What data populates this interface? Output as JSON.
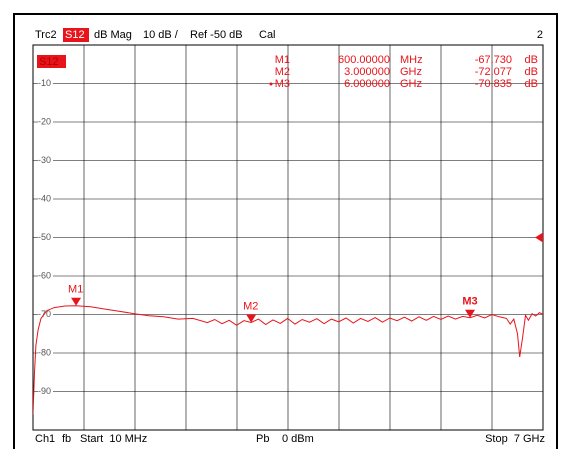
{
  "chart_data": {
    "type": "line",
    "header": {
      "trace": "Trc2",
      "param": "S12",
      "format": "dB Mag",
      "scale": "10 dB /",
      "ref": "Ref -50 dB",
      "cal": "Cal",
      "window": "2"
    },
    "ref_level": -50,
    "xlim": [
      0.01,
      7
    ],
    "ylim": [
      -100,
      0
    ],
    "yticks": [
      -10,
      -20,
      -30,
      -40,
      -50,
      -60,
      -70,
      -80,
      -90
    ],
    "grid": true,
    "series": [
      {
        "name": "S12",
        "color": "#e8141b",
        "x": [
          0.01,
          0.03,
          0.05,
          0.08,
          0.12,
          0.2,
          0.3,
          0.45,
          0.6,
          0.8,
          1.0,
          1.2,
          1.4,
          1.6,
          1.8,
          2.0,
          2.2,
          2.4,
          2.5,
          2.6,
          2.7,
          2.8,
          2.9,
          3.0,
          3.1,
          3.2,
          3.3,
          3.4,
          3.5,
          3.6,
          3.7,
          3.8,
          3.9,
          4.0,
          4.1,
          4.2,
          4.3,
          4.4,
          4.5,
          4.6,
          4.7,
          4.8,
          4.9,
          5.0,
          5.1,
          5.2,
          5.3,
          5.4,
          5.5,
          5.6,
          5.7,
          5.8,
          5.9,
          6.0,
          6.1,
          6.2,
          6.3,
          6.4,
          6.5,
          6.55,
          6.6,
          6.65,
          6.68,
          6.72,
          6.76,
          6.8,
          6.85,
          6.9,
          6.95,
          7.0
        ],
        "values": [
          -96,
          -85,
          -78,
          -74,
          -71,
          -69,
          -68.2,
          -67.8,
          -67.73,
          -68,
          -68.6,
          -69.2,
          -69.8,
          -70.3,
          -70.6,
          -71.2,
          -71,
          -72.1,
          -71.3,
          -72.4,
          -71.5,
          -72.8,
          -71.6,
          -72.077,
          -71.2,
          -72.6,
          -71.4,
          -72.3,
          -71,
          -72.5,
          -71.3,
          -72,
          -71.1,
          -72.4,
          -71.2,
          -71.9,
          -70.9,
          -72.2,
          -71,
          -71.8,
          -70.8,
          -72,
          -70.9,
          -71.6,
          -70.7,
          -71.7,
          -70.6,
          -71.5,
          -70.5,
          -71.3,
          -70.4,
          -71.2,
          -70.5,
          -70.835,
          -70.2,
          -70.9,
          -70,
          -70.6,
          -71,
          -72.5,
          -71.2,
          -75,
          -81,
          -76,
          -70.2,
          -71.5,
          -69.8,
          -70.4,
          -69.5,
          -70
        ]
      }
    ],
    "markers": [
      {
        "name": "M1",
        "x": 0.6,
        "x_label": "600.00000",
        "x_unit": "MHz",
        "value": -67.73,
        "value_label": "-67.730",
        "unit": "dB"
      },
      {
        "name": "M2",
        "x": 3,
        "x_label": "3.000000",
        "x_unit": "GHz",
        "value": -72.077,
        "value_label": "-72.077",
        "unit": "dB"
      },
      {
        "name": "M3",
        "x": 6,
        "x_label": "6.000000",
        "x_unit": "GHz",
        "value": -70.835,
        "value_label": "-70.835",
        "unit": "dB"
      }
    ],
    "footer": {
      "channel": "Ch1",
      "sweep": "fb",
      "start": "Start  10 MHz",
      "power_port": "Pb",
      "power": "0 dBm",
      "stop": "Stop  7 GHz"
    }
  }
}
